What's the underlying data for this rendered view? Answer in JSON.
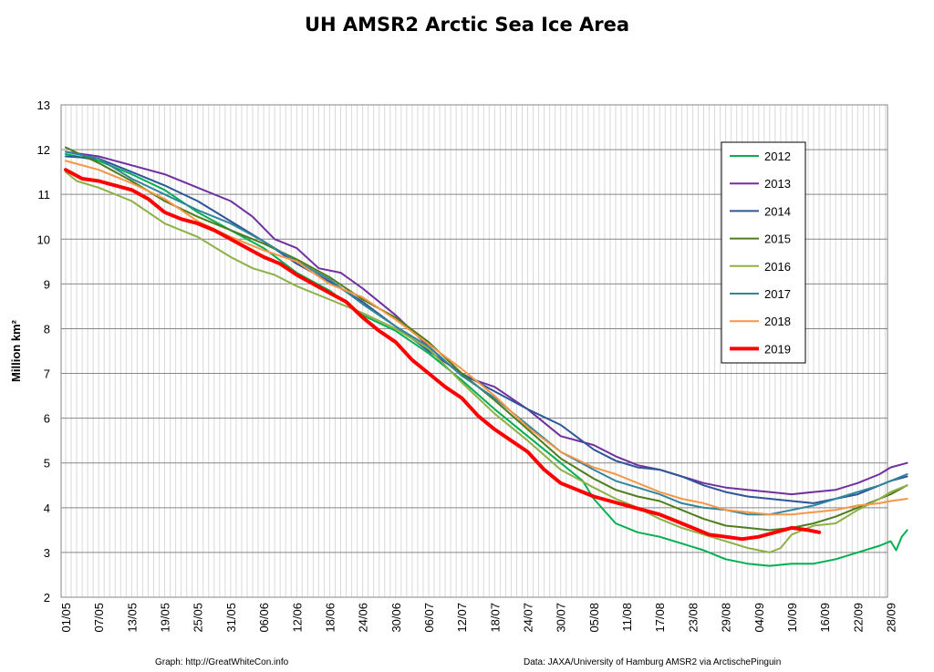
{
  "chart_data": {
    "type": "line",
    "title": "UH AMSR2 Arctic Sea Ice Area",
    "ylabel": "Million km²",
    "xlabel": "",
    "ylim": [
      2,
      13
    ],
    "yticks": [
      2,
      3,
      4,
      5,
      6,
      7,
      8,
      9,
      10,
      11,
      12,
      13
    ],
    "day_range": [
      0,
      150
    ],
    "xticks": [
      {
        "day": 0,
        "label": "01/05"
      },
      {
        "day": 6,
        "label": "07/05"
      },
      {
        "day": 12,
        "label": "13/05"
      },
      {
        "day": 18,
        "label": "19/05"
      },
      {
        "day": 24,
        "label": "25/05"
      },
      {
        "day": 30,
        "label": "31/05"
      },
      {
        "day": 36,
        "label": "06/06"
      },
      {
        "day": 42,
        "label": "12/06"
      },
      {
        "day": 48,
        "label": "18/06"
      },
      {
        "day": 54,
        "label": "24/06"
      },
      {
        "day": 60,
        "label": "30/06"
      },
      {
        "day": 66,
        "label": "06/07"
      },
      {
        "day": 72,
        "label": "12/07"
      },
      {
        "day": 78,
        "label": "18/07"
      },
      {
        "day": 84,
        "label": "24/07"
      },
      {
        "day": 90,
        "label": "30/07"
      },
      {
        "day": 96,
        "label": "05/08"
      },
      {
        "day": 102,
        "label": "11/08"
      },
      {
        "day": 108,
        "label": "17/08"
      },
      {
        "day": 114,
        "label": "23/08"
      },
      {
        "day": 120,
        "label": "29/08"
      },
      {
        "day": 126,
        "label": "04/09"
      },
      {
        "day": 132,
        "label": "10/09"
      },
      {
        "day": 138,
        "label": "16/09"
      },
      {
        "day": 144,
        "label": "22/09"
      },
      {
        "day": 150,
        "label": "28/09"
      }
    ],
    "grid": true,
    "legend_position": "top-right",
    "series": [
      {
        "name": "2012",
        "color": "#00b050",
        "width": 2,
        "points": [
          [
            0,
            11.9
          ],
          [
            6,
            11.75
          ],
          [
            12,
            11.45
          ],
          [
            18,
            11.1
          ],
          [
            24,
            10.6
          ],
          [
            30,
            10.2
          ],
          [
            36,
            9.8
          ],
          [
            42,
            9.25
          ],
          [
            48,
            8.85
          ],
          [
            54,
            8.3
          ],
          [
            60,
            7.95
          ],
          [
            66,
            7.45
          ],
          [
            72,
            6.85
          ],
          [
            78,
            6.2
          ],
          [
            84,
            5.6
          ],
          [
            90,
            5.0
          ],
          [
            94,
            4.6
          ],
          [
            96,
            4.2
          ],
          [
            100,
            3.65
          ],
          [
            104,
            3.45
          ],
          [
            108,
            3.35
          ],
          [
            112,
            3.2
          ],
          [
            116,
            3.05
          ],
          [
            120,
            2.85
          ],
          [
            124,
            2.75
          ],
          [
            128,
            2.7
          ],
          [
            132,
            2.75
          ],
          [
            136,
            2.75
          ],
          [
            140,
            2.85
          ],
          [
            144,
            3.0
          ],
          [
            148,
            3.15
          ],
          [
            150,
            3.25
          ],
          [
            151,
            3.05
          ],
          [
            152,
            3.35
          ],
          [
            153,
            3.5
          ]
        ]
      },
      {
        "name": "2013",
        "color": "#7030a0",
        "width": 2,
        "points": [
          [
            0,
            11.95
          ],
          [
            6,
            11.85
          ],
          [
            12,
            11.65
          ],
          [
            18,
            11.45
          ],
          [
            24,
            11.15
          ],
          [
            30,
            10.85
          ],
          [
            34,
            10.5
          ],
          [
            38,
            10.0
          ],
          [
            42,
            9.8
          ],
          [
            46,
            9.35
          ],
          [
            50,
            9.25
          ],
          [
            54,
            8.9
          ],
          [
            60,
            8.3
          ],
          [
            66,
            7.6
          ],
          [
            72,
            6.95
          ],
          [
            78,
            6.7
          ],
          [
            84,
            6.2
          ],
          [
            90,
            5.6
          ],
          [
            96,
            5.4
          ],
          [
            100,
            5.15
          ],
          [
            104,
            4.95
          ],
          [
            108,
            4.85
          ],
          [
            112,
            4.7
          ],
          [
            116,
            4.55
          ],
          [
            120,
            4.45
          ],
          [
            124,
            4.4
          ],
          [
            128,
            4.35
          ],
          [
            132,
            4.3
          ],
          [
            136,
            4.35
          ],
          [
            140,
            4.4
          ],
          [
            144,
            4.55
          ],
          [
            148,
            4.75
          ],
          [
            150,
            4.9
          ],
          [
            153,
            5.0
          ]
        ]
      },
      {
        "name": "2014",
        "color": "#2e5597",
        "width": 2,
        "points": [
          [
            0,
            11.85
          ],
          [
            6,
            11.8
          ],
          [
            12,
            11.5
          ],
          [
            18,
            11.2
          ],
          [
            24,
            10.85
          ],
          [
            30,
            10.4
          ],
          [
            36,
            9.95
          ],
          [
            42,
            9.45
          ],
          [
            48,
            9.05
          ],
          [
            54,
            8.6
          ],
          [
            60,
            8.05
          ],
          [
            66,
            7.5
          ],
          [
            72,
            7.0
          ],
          [
            78,
            6.6
          ],
          [
            84,
            6.2
          ],
          [
            90,
            5.85
          ],
          [
            96,
            5.3
          ],
          [
            100,
            5.05
          ],
          [
            104,
            4.9
          ],
          [
            108,
            4.85
          ],
          [
            112,
            4.7
          ],
          [
            116,
            4.5
          ],
          [
            120,
            4.35
          ],
          [
            124,
            4.25
          ],
          [
            128,
            4.2
          ],
          [
            132,
            4.15
          ],
          [
            136,
            4.1
          ],
          [
            140,
            4.2
          ],
          [
            144,
            4.3
          ],
          [
            148,
            4.5
          ],
          [
            150,
            4.6
          ],
          [
            153,
            4.7
          ]
        ]
      },
      {
        "name": "2015",
        "color": "#4f7d1b",
        "width": 2,
        "points": [
          [
            0,
            12.05
          ],
          [
            6,
            11.7
          ],
          [
            12,
            11.3
          ],
          [
            18,
            10.85
          ],
          [
            24,
            10.5
          ],
          [
            30,
            10.2
          ],
          [
            36,
            9.9
          ],
          [
            42,
            9.55
          ],
          [
            48,
            9.15
          ],
          [
            54,
            8.65
          ],
          [
            60,
            8.25
          ],
          [
            66,
            7.7
          ],
          [
            72,
            7.0
          ],
          [
            78,
            6.4
          ],
          [
            84,
            5.75
          ],
          [
            90,
            5.1
          ],
          [
            96,
            4.65
          ],
          [
            100,
            4.4
          ],
          [
            104,
            4.25
          ],
          [
            108,
            4.15
          ],
          [
            112,
            3.95
          ],
          [
            116,
            3.75
          ],
          [
            120,
            3.6
          ],
          [
            124,
            3.55
          ],
          [
            128,
            3.5
          ],
          [
            132,
            3.55
          ],
          [
            136,
            3.65
          ],
          [
            140,
            3.8
          ],
          [
            144,
            4.0
          ],
          [
            148,
            4.2
          ],
          [
            150,
            4.3
          ],
          [
            153,
            4.5
          ]
        ]
      },
      {
        "name": "2016",
        "color": "#8db047",
        "width": 2,
        "points": [
          [
            0,
            11.5
          ],
          [
            2,
            11.3
          ],
          [
            6,
            11.15
          ],
          [
            12,
            10.85
          ],
          [
            18,
            10.35
          ],
          [
            24,
            10.05
          ],
          [
            30,
            9.6
          ],
          [
            34,
            9.35
          ],
          [
            38,
            9.2
          ],
          [
            42,
            8.95
          ],
          [
            48,
            8.65
          ],
          [
            54,
            8.35
          ],
          [
            60,
            8.0
          ],
          [
            66,
            7.55
          ],
          [
            72,
            6.8
          ],
          [
            78,
            6.1
          ],
          [
            84,
            5.5
          ],
          [
            90,
            4.85
          ],
          [
            96,
            4.45
          ],
          [
            100,
            4.2
          ],
          [
            104,
            4.0
          ],
          [
            108,
            3.75
          ],
          [
            112,
            3.55
          ],
          [
            116,
            3.4
          ],
          [
            120,
            3.25
          ],
          [
            124,
            3.1
          ],
          [
            128,
            3.0
          ],
          [
            130,
            3.1
          ],
          [
            132,
            3.4
          ],
          [
            136,
            3.6
          ],
          [
            140,
            3.65
          ],
          [
            144,
            3.95
          ],
          [
            148,
            4.2
          ],
          [
            150,
            4.35
          ],
          [
            153,
            4.5
          ]
        ]
      },
      {
        "name": "2017",
        "color": "#31859c",
        "width": 2,
        "points": [
          [
            0,
            11.95
          ],
          [
            6,
            11.8
          ],
          [
            12,
            11.35
          ],
          [
            18,
            11.0
          ],
          [
            24,
            10.65
          ],
          [
            30,
            10.35
          ],
          [
            36,
            9.95
          ],
          [
            42,
            9.5
          ],
          [
            48,
            9.1
          ],
          [
            54,
            8.55
          ],
          [
            60,
            8.05
          ],
          [
            66,
            7.6
          ],
          [
            72,
            6.95
          ],
          [
            78,
            6.45
          ],
          [
            84,
            5.85
          ],
          [
            90,
            5.25
          ],
          [
            96,
            4.85
          ],
          [
            100,
            4.6
          ],
          [
            104,
            4.45
          ],
          [
            108,
            4.3
          ],
          [
            112,
            4.1
          ],
          [
            116,
            4.0
          ],
          [
            120,
            3.95
          ],
          [
            124,
            3.85
          ],
          [
            128,
            3.85
          ],
          [
            132,
            3.95
          ],
          [
            136,
            4.05
          ],
          [
            140,
            4.2
          ],
          [
            144,
            4.35
          ],
          [
            148,
            4.5
          ],
          [
            150,
            4.6
          ],
          [
            153,
            4.75
          ]
        ]
      },
      {
        "name": "2018",
        "color": "#f79646",
        "width": 2,
        "points": [
          [
            0,
            11.75
          ],
          [
            6,
            11.55
          ],
          [
            12,
            11.25
          ],
          [
            18,
            10.9
          ],
          [
            24,
            10.4
          ],
          [
            30,
            10.05
          ],
          [
            36,
            9.75
          ],
          [
            42,
            9.5
          ],
          [
            48,
            9.0
          ],
          [
            54,
            8.7
          ],
          [
            60,
            8.2
          ],
          [
            66,
            7.65
          ],
          [
            72,
            7.1
          ],
          [
            78,
            6.5
          ],
          [
            84,
            5.8
          ],
          [
            90,
            5.25
          ],
          [
            96,
            4.9
          ],
          [
            100,
            4.75
          ],
          [
            104,
            4.55
          ],
          [
            108,
            4.35
          ],
          [
            112,
            4.2
          ],
          [
            116,
            4.1
          ],
          [
            120,
            3.95
          ],
          [
            124,
            3.9
          ],
          [
            128,
            3.85
          ],
          [
            132,
            3.85
          ],
          [
            136,
            3.9
          ],
          [
            140,
            3.95
          ],
          [
            144,
            4.05
          ],
          [
            148,
            4.1
          ],
          [
            150,
            4.15
          ],
          [
            153,
            4.2
          ]
        ]
      },
      {
        "name": "2019",
        "color": "#ff0000",
        "width": 4,
        "points": [
          [
            0,
            11.55
          ],
          [
            3,
            11.35
          ],
          [
            6,
            11.3
          ],
          [
            9,
            11.2
          ],
          [
            12,
            11.1
          ],
          [
            15,
            10.9
          ],
          [
            18,
            10.6
          ],
          [
            21,
            10.45
          ],
          [
            24,
            10.35
          ],
          [
            27,
            10.2
          ],
          [
            30,
            10.0
          ],
          [
            33,
            9.8
          ],
          [
            36,
            9.6
          ],
          [
            39,
            9.45
          ],
          [
            42,
            9.2
          ],
          [
            45,
            9.0
          ],
          [
            48,
            8.8
          ],
          [
            51,
            8.6
          ],
          [
            54,
            8.25
          ],
          [
            57,
            7.95
          ],
          [
            60,
            7.7
          ],
          [
            63,
            7.3
          ],
          [
            66,
            7.0
          ],
          [
            69,
            6.7
          ],
          [
            72,
            6.45
          ],
          [
            75,
            6.05
          ],
          [
            78,
            5.75
          ],
          [
            81,
            5.5
          ],
          [
            84,
            5.25
          ],
          [
            87,
            4.85
          ],
          [
            90,
            4.55
          ],
          [
            93,
            4.4
          ],
          [
            96,
            4.25
          ],
          [
            99,
            4.15
          ],
          [
            102,
            4.05
          ],
          [
            105,
            3.95
          ],
          [
            108,
            3.85
          ],
          [
            111,
            3.7
          ],
          [
            114,
            3.55
          ],
          [
            117,
            3.4
          ],
          [
            120,
            3.35
          ],
          [
            123,
            3.3
          ],
          [
            126,
            3.35
          ],
          [
            129,
            3.45
          ],
          [
            132,
            3.55
          ],
          [
            135,
            3.5
          ],
          [
            137,
            3.45
          ]
        ]
      }
    ]
  },
  "credits": {
    "left": "Graph: http://GreatWhiteCon.info",
    "right": "Data: JAXA/University of Hamburg AMSR2  via  ArctischePinguin"
  }
}
